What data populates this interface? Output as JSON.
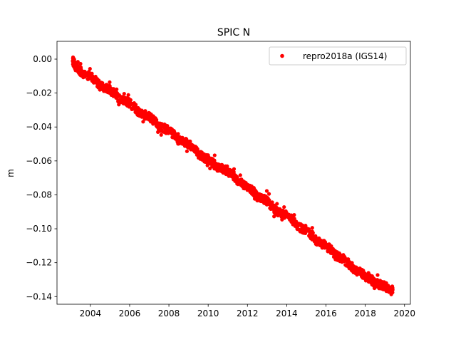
{
  "chart_data": {
    "type": "scatter",
    "title": "SPIC N",
    "xlabel": "",
    "ylabel": "m",
    "xlim": [
      2002.3,
      2020.3
    ],
    "ylim": [
      -0.1445,
      0.0105
    ],
    "xticks": [
      2004,
      2006,
      2008,
      2010,
      2012,
      2014,
      2016,
      2018,
      2020
    ],
    "xtick_labels": [
      "2004",
      "2006",
      "2008",
      "2010",
      "2012",
      "2014",
      "2016",
      "2018",
      "2020"
    ],
    "yticks": [
      0.0,
      -0.02,
      -0.04,
      -0.06,
      -0.08,
      -0.1,
      -0.12,
      -0.14
    ],
    "ytick_labels": [
      "0.00",
      "−0.02",
      "−0.04",
      "−0.06",
      "−0.08",
      "−0.10",
      "−0.12",
      "−0.14"
    ],
    "grid": false,
    "legend_position": "top-right",
    "series": [
      {
        "name": "repro2018a (IGS14)",
        "color": "#ff0000",
        "marker": "circle",
        "x": [
          2003.1,
          2003.2,
          2003.3,
          2003.5,
          2003.7,
          2004.0,
          2004.3,
          2004.5,
          2004.8,
          2005.0,
          2005.3,
          2005.5,
          2005.8,
          2006.0,
          2006.3,
          2006.5,
          2006.8,
          2007.0,
          2007.3,
          2007.5,
          2007.8,
          2008.0,
          2008.3,
          2008.5,
          2008.8,
          2009.0,
          2009.3,
          2009.5,
          2009.8,
          2010.0,
          2010.3,
          2010.5,
          2010.8,
          2011.0,
          2011.3,
          2011.5,
          2011.8,
          2012.0,
          2012.3,
          2012.5,
          2012.8,
          2013.0,
          2013.3,
          2013.5,
          2013.8,
          2014.0,
          2014.3,
          2014.5,
          2014.8,
          2015.0,
          2015.3,
          2015.5,
          2015.8,
          2016.0,
          2016.3,
          2016.5,
          2016.8,
          2017.0,
          2017.3,
          2017.5,
          2017.8,
          2018.0,
          2018.3,
          2018.5,
          2018.8,
          2019.0,
          2019.2,
          2019.4
        ],
        "y": [
          -0.001,
          -0.003,
          -0.005,
          -0.007,
          -0.009,
          -0.01,
          -0.013,
          -0.016,
          -0.017,
          -0.018,
          -0.021,
          -0.024,
          -0.025,
          -0.026,
          -0.029,
          -0.032,
          -0.033,
          -0.034,
          -0.037,
          -0.04,
          -0.041,
          -0.042,
          -0.045,
          -0.048,
          -0.049,
          -0.05,
          -0.053,
          -0.056,
          -0.058,
          -0.059,
          -0.062,
          -0.064,
          -0.065,
          -0.066,
          -0.069,
          -0.072,
          -0.074,
          -0.075,
          -0.078,
          -0.081,
          -0.082,
          -0.084,
          -0.087,
          -0.09,
          -0.091,
          -0.092,
          -0.095,
          -0.098,
          -0.1,
          -0.101,
          -0.104,
          -0.107,
          -0.109,
          -0.11,
          -0.113,
          -0.116,
          -0.117,
          -0.119,
          -0.122,
          -0.125,
          -0.126,
          -0.128,
          -0.13,
          -0.132,
          -0.133,
          -0.134,
          -0.135,
          -0.136
        ]
      }
    ]
  }
}
